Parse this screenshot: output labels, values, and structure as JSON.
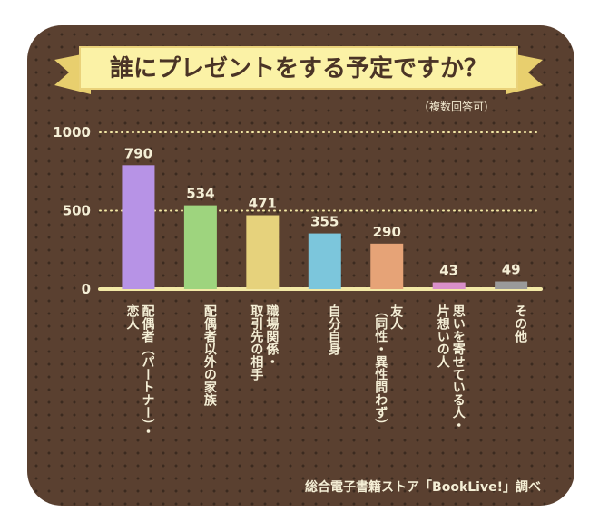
{
  "chart_data": {
    "type": "bar",
    "title": "誰にプレゼントをする予定ですか？",
    "note": "（複数回答可）",
    "ylim": [
      0,
      1000
    ],
    "yticks": [
      "0",
      "500",
      "1000"
    ],
    "grid": true,
    "categories": [
      {
        "lines": [
          "配偶者（パートナー）・",
          "恋人"
        ]
      },
      {
        "lines": [
          "配偶者以外の家族"
        ]
      },
      {
        "lines": [
          "職場関係・",
          "取引先の相手"
        ]
      },
      {
        "lines": [
          "自分自身"
        ]
      },
      {
        "lines": [
          "友人",
          "（同性・異性問わず）"
        ]
      },
      {
        "lines": [
          "思いを寄せている人・",
          "片想いの人"
        ]
      },
      {
        "lines": [
          "その他"
        ]
      }
    ],
    "values": [
      790,
      534,
      471,
      355,
      290,
      43,
      49
    ],
    "value_labels": [
      "790",
      "534",
      "471",
      "355",
      "290",
      "43",
      "49"
    ],
    "colors": [
      "#b793e6",
      "#9ed47e",
      "#e6d27c",
      "#7cc6dc",
      "#e6a377",
      "#d98fc9",
      "#9a9a9a"
    ],
    "source": "総合電子書籍ストア「BookLive!」調べ"
  },
  "colors": {
    "background": "#5a4030",
    "banner": "#fbf2a6",
    "axis": "#f3e9a6",
    "text": "#f5efd6"
  }
}
